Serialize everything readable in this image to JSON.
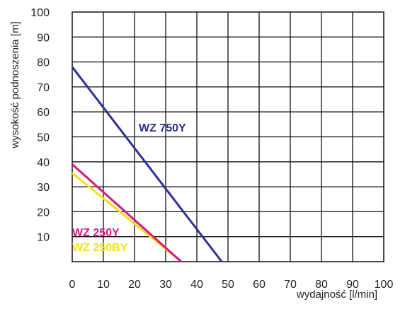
{
  "chart_data": {
    "type": "line",
    "title": "",
    "xlabel": "wydajność [l/min]",
    "ylabel": "wysokość podnoszenia [m]",
    "xlim": [
      0,
      100
    ],
    "ylim": [
      0,
      100
    ],
    "xticks": [
      "0",
      "10",
      "20",
      "30",
      "40",
      "50",
      "60",
      "70",
      "80",
      "90",
      "100"
    ],
    "yticks": [
      "10",
      "20",
      "30",
      "40",
      "50",
      "60",
      "70",
      "80",
      "90",
      "100"
    ],
    "grid": true,
    "series": [
      {
        "name": "WZ 750Y",
        "color": "#2e3192",
        "x": [
          0,
          48
        ],
        "y": [
          78,
          0
        ]
      },
      {
        "name": "WZ 250Y",
        "color": "#d6197d",
        "x": [
          0,
          35
        ],
        "y": [
          39,
          0
        ]
      },
      {
        "name": "WZ 250BY",
        "color": "#f2e01b",
        "x": [
          0,
          35
        ],
        "y": [
          35.5,
          0
        ]
      }
    ]
  }
}
